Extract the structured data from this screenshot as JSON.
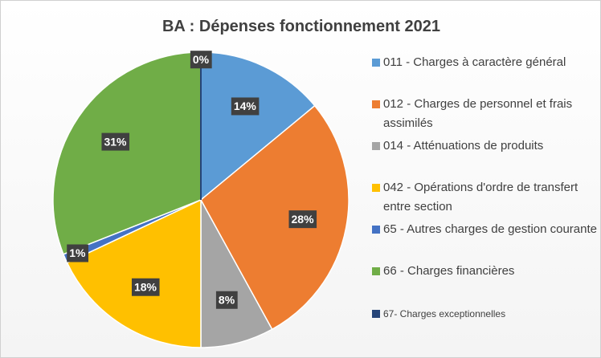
{
  "chart_data": {
    "type": "pie",
    "title": "BA : Dépenses fonctionnement 2021",
    "categories": [
      "011 - Charges à caractère général",
      "012 - Charges de personnel et frais assimilés",
      "014 - Atténuations de produits",
      "042 - Opérations d'ordre de transfert entre section",
      "65 - Autres charges de gestion courante",
      "66 - Charges financières",
      "67- Charges exceptionnelles"
    ],
    "values": [
      14,
      28,
      8,
      18,
      1,
      31,
      0
    ],
    "value_labels": [
      "14%",
      "28%",
      "8%",
      "18%",
      "1%",
      "31%",
      "0%"
    ],
    "colors": [
      "#5b9bd5",
      "#ed7d31",
      "#a5a5a5",
      "#ffc000",
      "#4472c4",
      "#70ad47",
      "#264478"
    ],
    "legend": "right"
  }
}
